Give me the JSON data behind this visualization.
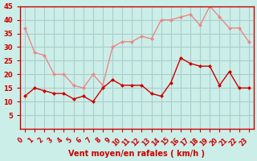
{
  "x": [
    0,
    1,
    2,
    3,
    4,
    5,
    6,
    7,
    8,
    9,
    10,
    11,
    12,
    13,
    14,
    15,
    16,
    17,
    18,
    19,
    20,
    21,
    22,
    23
  ],
  "wind_avg": [
    12,
    15,
    14,
    13,
    13,
    11,
    12,
    10,
    15,
    18,
    16,
    16,
    16,
    13,
    12,
    17,
    26,
    24,
    23,
    23,
    16,
    21,
    15,
    15
  ],
  "wind_gust": [
    37,
    28,
    27,
    20,
    20,
    16,
    15,
    20,
    16,
    30,
    32,
    32,
    34,
    33,
    40,
    40,
    41,
    42,
    38,
    45,
    41,
    37,
    37,
    32
  ],
  "color_avg": "#cc0000",
  "color_gust": "#e88888",
  "background_color": "#cceee8",
  "grid_color": "#aacccc",
  "axis_color": "#cc0000",
  "xlabel": "Vent moyen/en rafales ( km/h )",
  "ylim": [
    0,
    45
  ],
  "yticks": [
    5,
    10,
    15,
    20,
    25,
    30,
    35,
    40,
    45
  ],
  "xticks": [
    0,
    1,
    2,
    3,
    4,
    5,
    6,
    7,
    8,
    9,
    10,
    11,
    12,
    13,
    14,
    15,
    16,
    17,
    18,
    19,
    20,
    21,
    22,
    23
  ]
}
